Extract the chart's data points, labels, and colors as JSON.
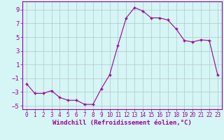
{
  "x": [
    0,
    1,
    2,
    3,
    4,
    5,
    6,
    7,
    8,
    9,
    10,
    11,
    12,
    13,
    14,
    15,
    16,
    17,
    18,
    19,
    20,
    21,
    22,
    23
  ],
  "y": [
    -1.8,
    -3.2,
    -3.2,
    -2.8,
    -3.8,
    -4.2,
    -4.2,
    -4.8,
    -4.8,
    -2.5,
    -0.5,
    3.8,
    7.8,
    9.3,
    8.8,
    7.8,
    7.8,
    7.5,
    6.2,
    4.5,
    4.3,
    4.6,
    4.5,
    -0.5
  ],
  "line_color": "#990099",
  "marker_color": "#990099",
  "bg_color": "#d6f5f5",
  "grid_color": "#b0c8c8",
  "axis_color": "#990099",
  "tick_color": "#990099",
  "xlabel": "Windchill (Refroidissement éolien,°C)",
  "xlim": [
    -0.5,
    23.5
  ],
  "ylim": [
    -5.5,
    10.2
  ],
  "yticks": [
    -5,
    -3,
    -1,
    1,
    3,
    5,
    7,
    9
  ],
  "xticks": [
    0,
    1,
    2,
    3,
    4,
    5,
    6,
    7,
    8,
    9,
    10,
    11,
    12,
    13,
    14,
    15,
    16,
    17,
    18,
    19,
    20,
    21,
    22,
    23
  ],
  "tick_fontsize": 6.0,
  "xlabel_fontsize": 6.5
}
